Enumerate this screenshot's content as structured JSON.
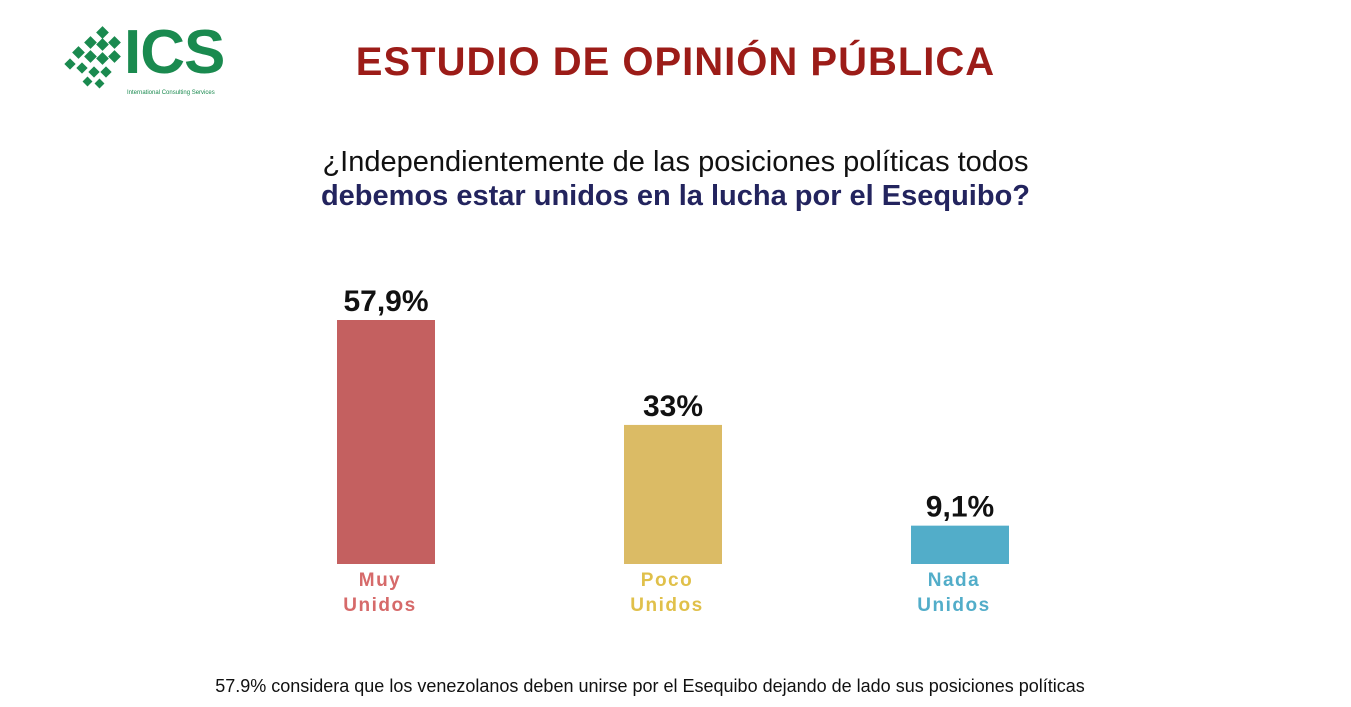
{
  "logo": {
    "word": "ICS",
    "subtitle": "International Consulting Services",
    "color": "#1a8a4f"
  },
  "title": "ESTUDIO DE OPINIÓN PÚBLICA",
  "question": {
    "line1": "¿Independientemente de las posiciones políticas todos",
    "line2": "debemos estar unidos en la lucha por el Esequibo?"
  },
  "chart_data": {
    "type": "bar",
    "categories": [
      [
        "Muy",
        "Unidos"
      ],
      [
        "Poco",
        "Unidos"
      ],
      [
        "Nada",
        "Unidos"
      ]
    ],
    "values": [
      57.9,
      33,
      9.1
    ],
    "data_labels": [
      "57,9%",
      "33%",
      "9,1%"
    ],
    "colors": [
      "#c46060",
      "#dbbb65",
      "#52adc9"
    ],
    "label_colors": [
      "#d66a6a",
      "#e0c04a",
      "#52adc9"
    ],
    "ylim": [
      0,
      57.9
    ],
    "grid": false,
    "legend": "none"
  },
  "footnote": "57.9% considera que los venezolanos deben unirse por el Esequibo dejando de lado sus posiciones políticas"
}
